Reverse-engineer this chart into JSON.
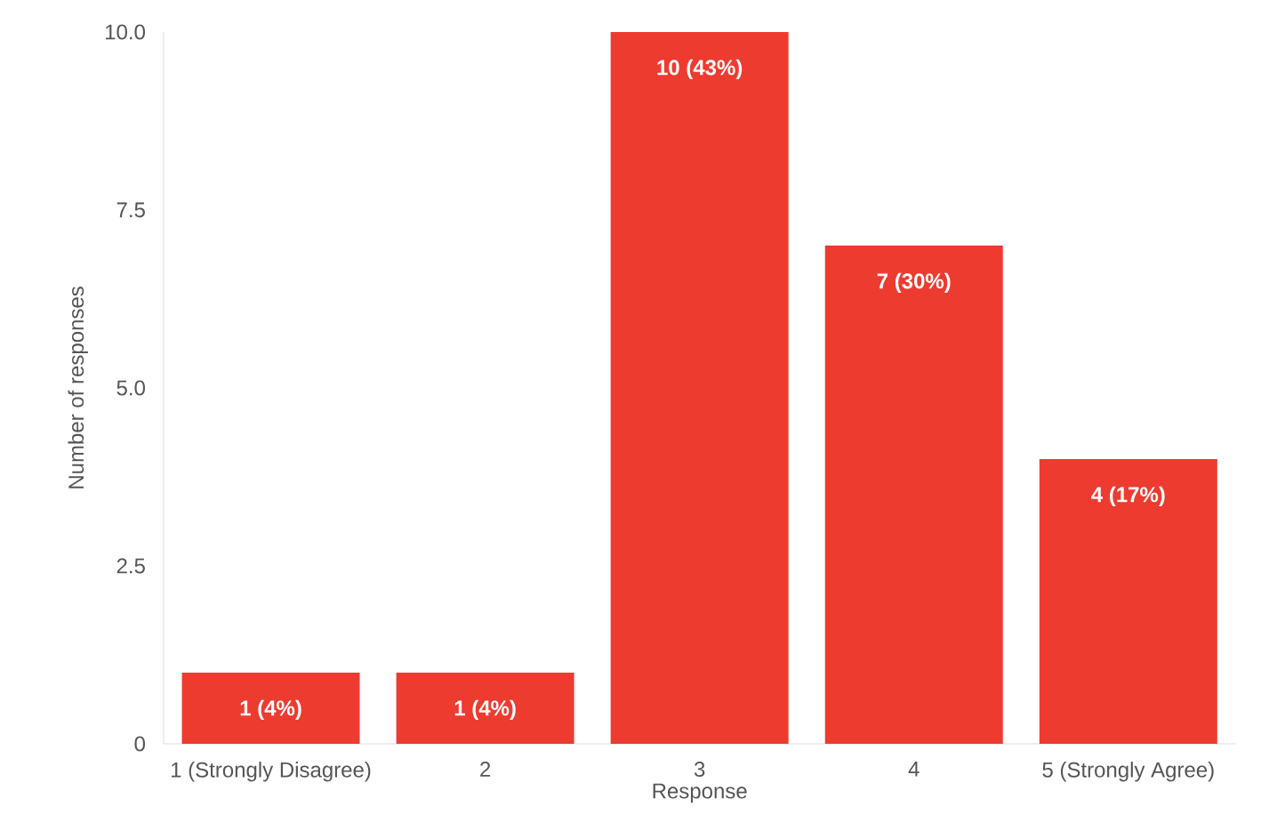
{
  "chart_data": {
    "type": "bar",
    "xlabel": "Response",
    "ylabel": "Number of responses",
    "categories": [
      "1 (Strongly Disagree)",
      "2",
      "3",
      "4",
      "5 (Strongly Agree)"
    ],
    "values": [
      1,
      1,
      10,
      7,
      4
    ],
    "value_labels": [
      "1 (4%)",
      "1 (4%)",
      "10 (43%)",
      "7 (30%)",
      "4 (17%)"
    ],
    "color": "#ee3b30",
    "ylim": [
      0,
      10
    ],
    "yticks": [
      0,
      2.5,
      {
        "value": 5,
        "label": "5.0"
      },
      7.5,
      {
        "value": 10,
        "label": "10.0"
      }
    ],
    "grid": false
  }
}
